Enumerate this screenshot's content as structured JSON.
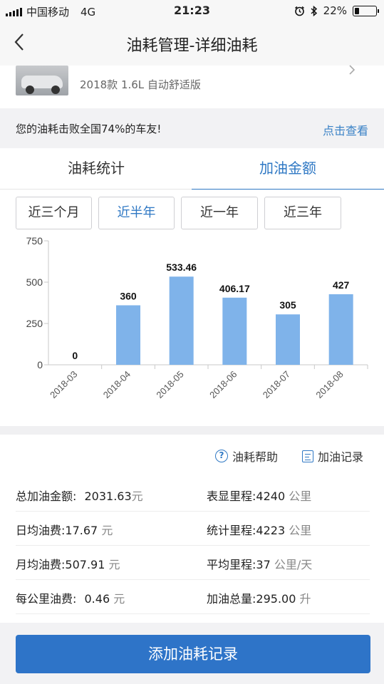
{
  "status_bar": {
    "carrier": "中国移动",
    "network": "4G",
    "time": "21:23",
    "battery": "22%",
    "battery_level": 0.22
  },
  "nav": {
    "title": "油耗管理-详细油耗",
    "back_icon": "chevron-left-icon"
  },
  "car": {
    "model": "2018款 1.6L 自动舒适版",
    "chevron_icon": "chevron-right-icon"
  },
  "compare": {
    "text": "您的油耗击败全国74%的车友!",
    "link": "点击查看"
  },
  "tabs": [
    {
      "label": "油耗统计"
    },
    {
      "label": "加油金额"
    }
  ],
  "filters": [
    {
      "label": "近三个月"
    },
    {
      "label": "近半年"
    },
    {
      "label": "近一年"
    },
    {
      "label": "近三年"
    }
  ],
  "chart_data": {
    "type": "bar",
    "categories": [
      "2018-03",
      "2018-04",
      "2018-05",
      "2018-06",
      "2018-07",
      "2018-08"
    ],
    "values": [
      0,
      360,
      533.46,
      406.17,
      305,
      427
    ],
    "value_labels": [
      "0",
      "360",
      "533.46",
      "406.17",
      "305",
      "427"
    ],
    "yticks": [
      "0",
      "250",
      "500",
      "750"
    ],
    "ylim": [
      0,
      750
    ],
    "bar_color": "#7fb3ea",
    "grid": false
  },
  "links": {
    "help": "油耗帮助",
    "records": "加油记录"
  },
  "stats": {
    "total_label": "总加油金额:",
    "total_value": "2031.63",
    "total_unit": "元",
    "odometer_label": "表显里程:",
    "odometer_value": "4240",
    "odometer_unit": "公里",
    "daily_label": "日均油费:",
    "daily_value": "17.67",
    "daily_unit": "元",
    "stat_mileage_label": "统计里程:",
    "stat_mileage_value": "4223",
    "stat_mileage_unit": "公里",
    "monthly_label": "月均油费:",
    "monthly_value": "507.91",
    "monthly_unit": "元",
    "avg_mileage_label": "平均里程:",
    "avg_mileage_value": "37",
    "avg_mileage_unit": "公里/天",
    "per_km_label": "每公里油费:",
    "per_km_value": "0.46",
    "per_km_unit": "元",
    "fuel_total_label": "加油总量:",
    "fuel_total_value": "295.00",
    "fuel_total_unit": "升"
  },
  "button": {
    "add": "添加油耗记录"
  },
  "colors": {
    "accent": "#2f78c4",
    "button": "#2e74c8",
    "bar": "#7fb3ea"
  }
}
